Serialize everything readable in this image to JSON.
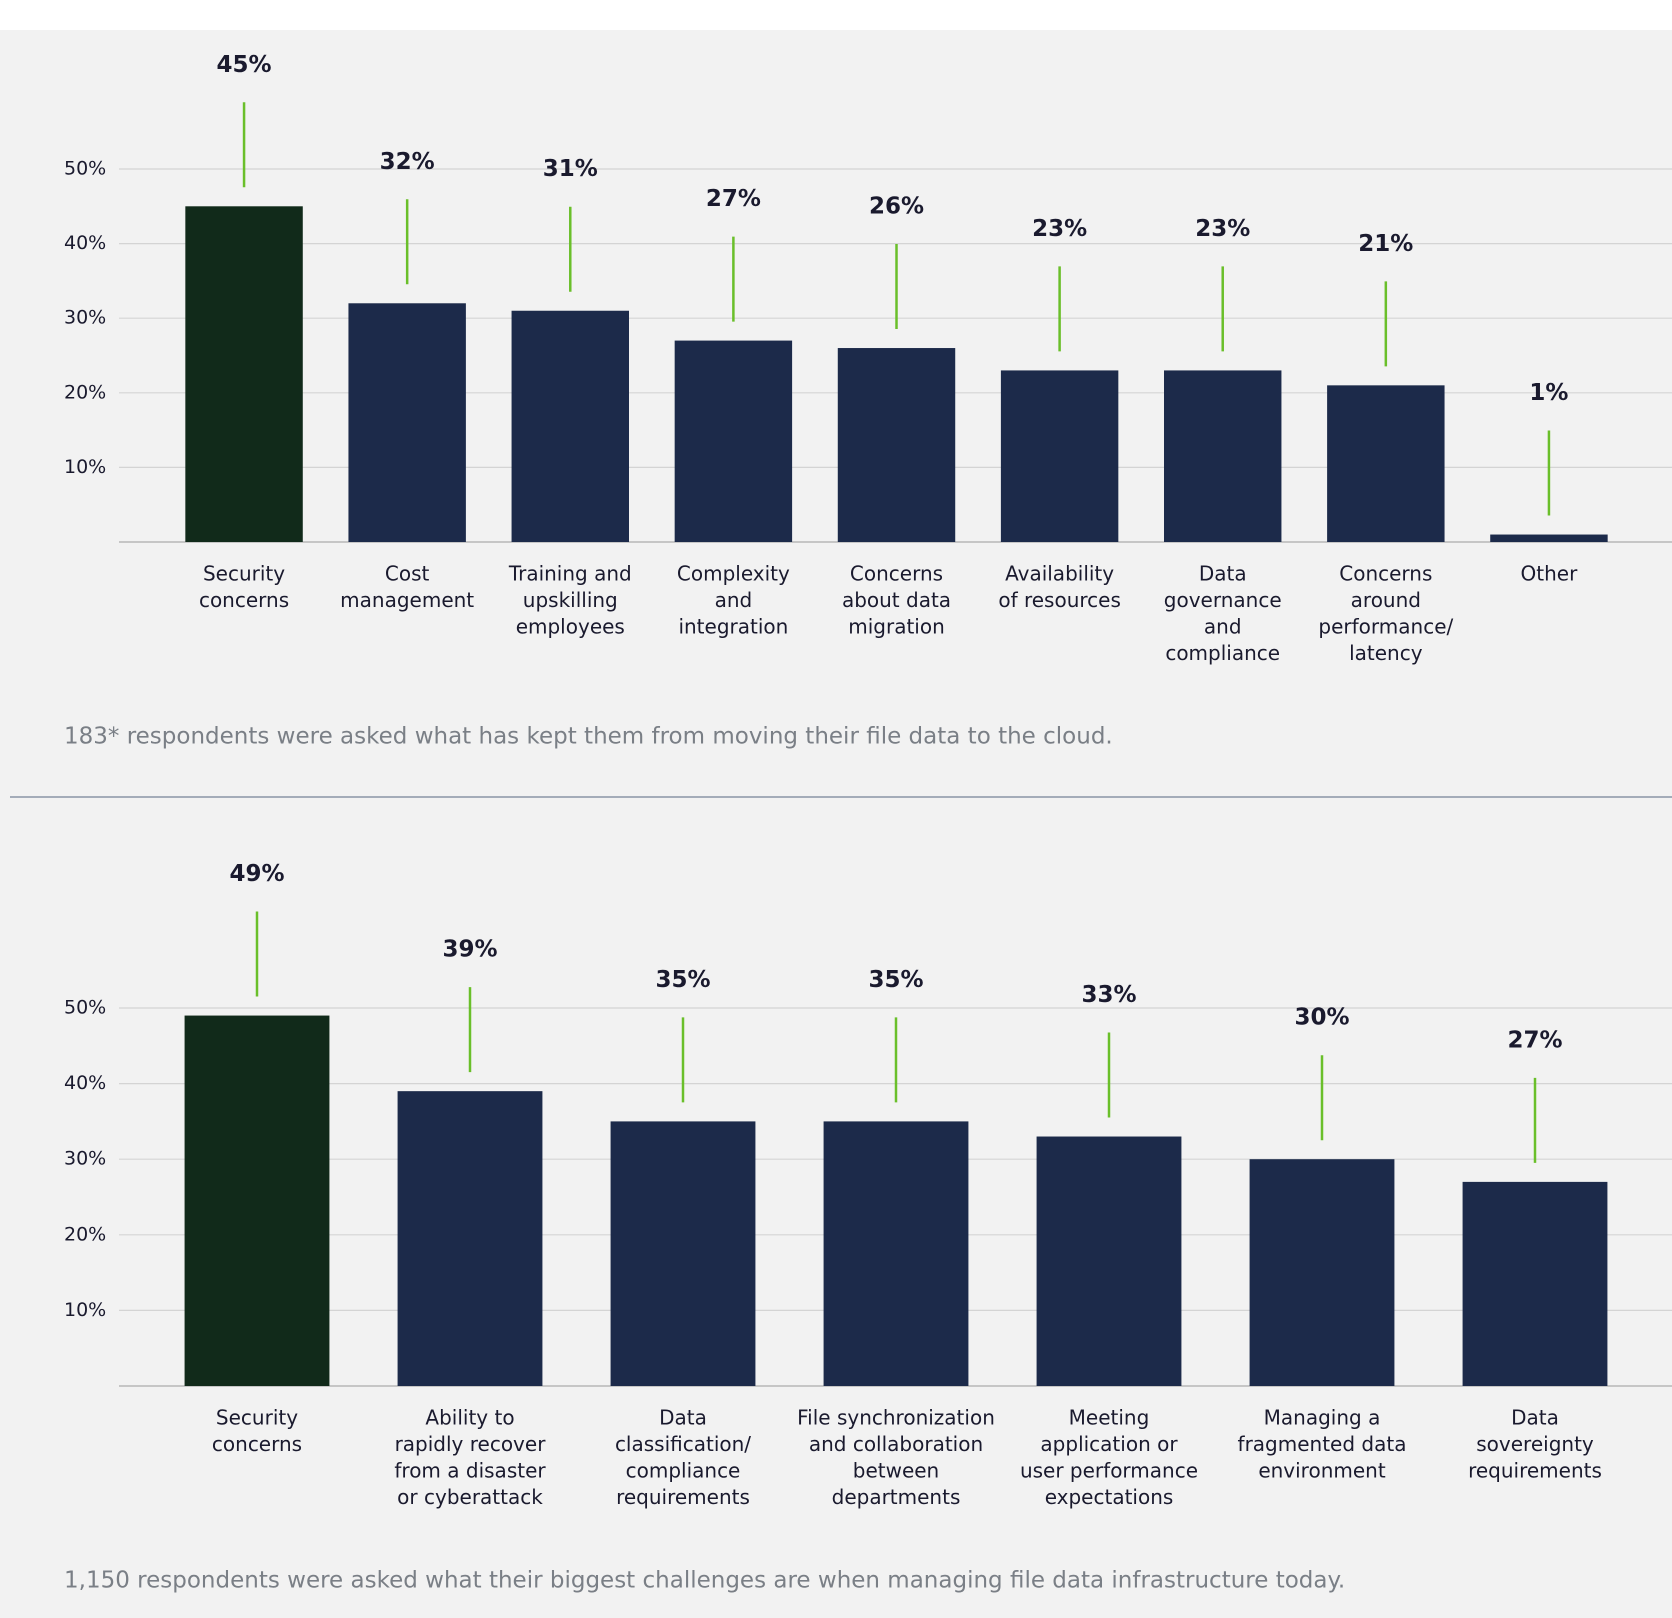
{
  "chart_data": [
    {
      "type": "bar",
      "categories": [
        [
          "Security",
          "concerns"
        ],
        [
          "Cost",
          "management"
        ],
        [
          "Training and",
          "upskilling",
          "employees"
        ],
        [
          "Complexity",
          "and",
          "integration"
        ],
        [
          "Concerns",
          "about data",
          "migration"
        ],
        [
          "Availability",
          "of resources"
        ],
        [
          "Data",
          "governance",
          "and",
          "compliance"
        ],
        [
          "Concerns",
          "around",
          "performance/",
          "latency"
        ],
        [
          "Other"
        ]
      ],
      "values": [
        45,
        32,
        31,
        27,
        26,
        23,
        23,
        21,
        1
      ],
      "value_labels": [
        "45%",
        "32%",
        "31%",
        "27%",
        "26%",
        "23%",
        "23%",
        "21%",
        "1%"
      ],
      "colors": [
        "#112a1a",
        "#1c2a4a",
        "#1c2a4a",
        "#1c2a4a",
        "#1c2a4a",
        "#1c2a4a",
        "#1c2a4a",
        "#1c2a4a",
        "#1c2a4a"
      ],
      "ylim": [
        0,
        50
      ],
      "yticks": [
        {
          "value": 10,
          "label": "10%"
        },
        {
          "value": 20,
          "label": "20%"
        },
        {
          "value": 30,
          "label": "30%"
        },
        {
          "value": 40,
          "label": "40%"
        },
        {
          "value": 50,
          "label": "50%"
        }
      ],
      "grid": true,
      "note": "183* respondents were asked what has kept them from moving their file data to the cloud."
    },
    {
      "type": "bar",
      "categories": [
        [
          "Security",
          "concerns"
        ],
        [
          "Ability to",
          "rapidly recover",
          "from a disaster",
          "or cyberattack"
        ],
        [
          "Data",
          "classification/",
          "compliance",
          "requirements"
        ],
        [
          "File synchronization",
          "and collaboration",
          "between",
          "departments"
        ],
        [
          "Meeting",
          "application or",
          "user performance",
          "expectations"
        ],
        [
          "Managing a",
          "fragmented data",
          "environment"
        ],
        [
          "Data",
          "sovereignty",
          "requirements"
        ]
      ],
      "values": [
        49,
        39,
        35,
        35,
        33,
        30,
        27
      ],
      "value_labels": [
        "49%",
        "39%",
        "35%",
        "35%",
        "33%",
        "30%",
        "27%"
      ],
      "colors": [
        "#112a1a",
        "#1c2a4a",
        "#1c2a4a",
        "#1c2a4a",
        "#1c2a4a",
        "#1c2a4a",
        "#1c2a4a"
      ],
      "ylim": [
        0,
        50
      ],
      "yticks": [
        {
          "value": 10,
          "label": "10%"
        },
        {
          "value": 20,
          "label": "20%"
        },
        {
          "value": 30,
          "label": "30%"
        },
        {
          "value": 40,
          "label": "40%"
        },
        {
          "value": 50,
          "label": "50%"
        }
      ],
      "grid": true,
      "note": "1,150 respondents were asked what their biggest challenges are when managing file data infrastructure today."
    }
  ]
}
